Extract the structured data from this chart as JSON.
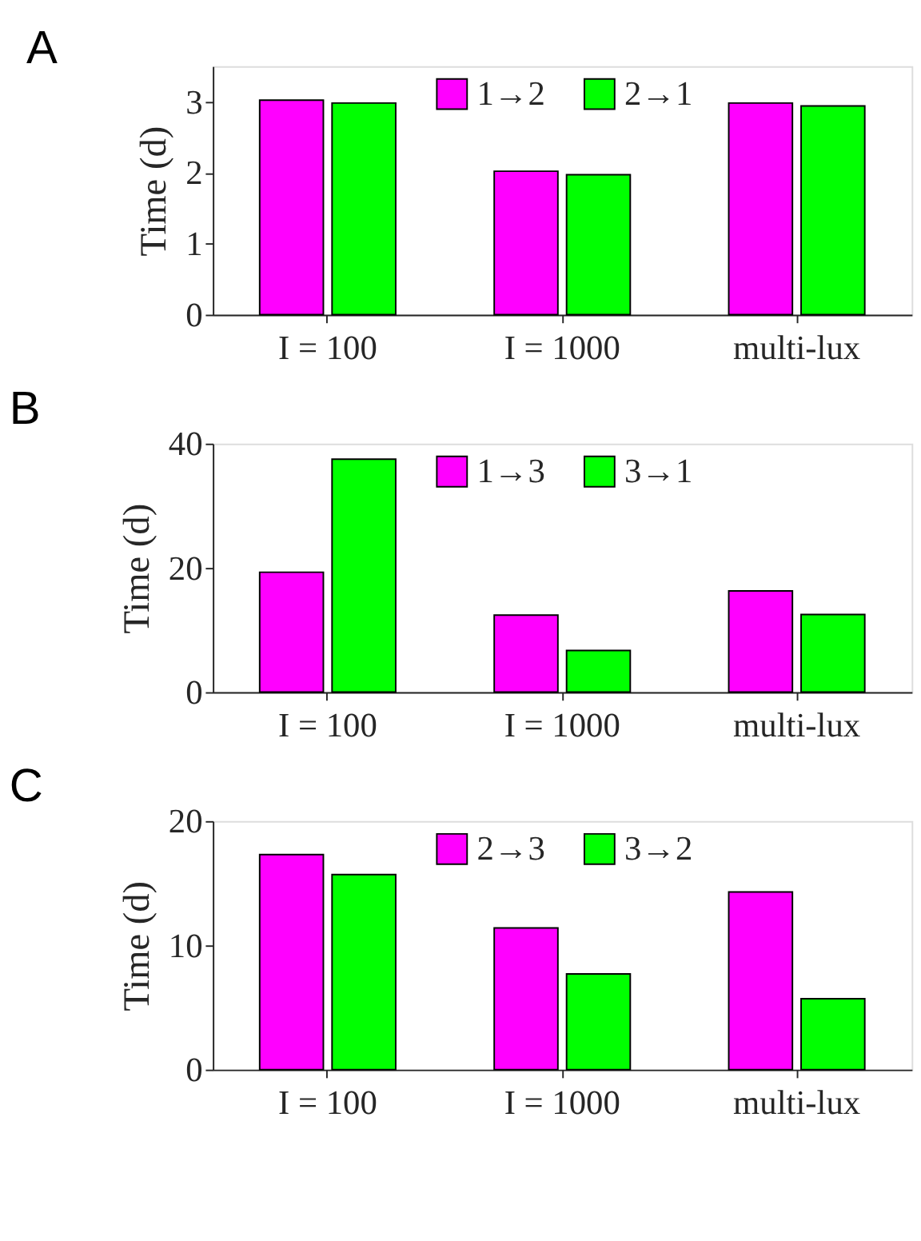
{
  "chart_data": [
    {
      "type": "bar",
      "title": "A",
      "ylabel": "Time (d)",
      "categories": [
        "I = 100",
        "I = 1000",
        "multi-lux"
      ],
      "series": [
        {
          "name": "1→2",
          "color": "#ff00ff",
          "values": [
            3.02,
            2.02,
            2.98
          ]
        },
        {
          "name": "2→1",
          "color": "#00ff00",
          "values": [
            2.98,
            1.97,
            2.94
          ]
        }
      ],
      "ylim": [
        0,
        3.5
      ],
      "yticks": [
        0,
        1,
        2,
        3
      ],
      "grid": false,
      "legend": "top"
    },
    {
      "type": "bar",
      "title": "B",
      "ylabel": "Time (d)",
      "categories": [
        "I = 100",
        "I = 1000",
        "multi-lux"
      ],
      "series": [
        {
          "name": "1→3",
          "color": "#ff00ff",
          "values": [
            19.3,
            12.4,
            16.3
          ]
        },
        {
          "name": "3→1",
          "color": "#00ff00",
          "values": [
            37.5,
            6.7,
            12.5
          ]
        }
      ],
      "ylim": [
        0,
        40
      ],
      "yticks": [
        0,
        20,
        40
      ],
      "grid": false,
      "legend": "top"
    },
    {
      "type": "bar",
      "title": "C",
      "ylabel": "Time (d)",
      "categories": [
        "I = 100",
        "I = 1000",
        "multi-lux"
      ],
      "series": [
        {
          "name": "2→3",
          "color": "#ff00ff",
          "values": [
            17.3,
            11.4,
            14.3
          ]
        },
        {
          "name": "3→2",
          "color": "#00ff00",
          "values": [
            15.7,
            7.7,
            5.7
          ]
        }
      ],
      "ylim": [
        0,
        20
      ],
      "yticks": [
        0,
        10,
        20
      ],
      "grid": false,
      "legend": "top"
    }
  ]
}
